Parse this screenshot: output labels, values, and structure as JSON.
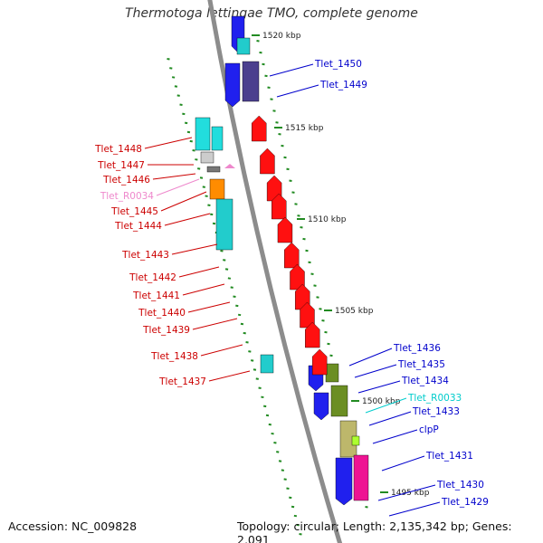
{
  "title": "Thermotoga lettingae TMO, complete genome",
  "footer": {
    "accession": "Accession: NC_009828",
    "topology": "Topology: circular; Length: 2,135,342 bp; Genes: 2,091"
  },
  "colors": {
    "backbone": "#8c8c8c",
    "tick": "#228b22",
    "forward_label": "#0000cc",
    "reverse_label": "#cc0000",
    "rna_forward": "#00cccc",
    "rna_reverse": "#ee88cc"
  },
  "kbp_ticks": [
    "1520 kbp",
    "1515 kbp",
    "1510 kbp",
    "1505 kbp",
    "1500 kbp",
    "1495 kbp"
  ],
  "forward_genes": [
    "Tlet_1450",
    "Tlet_1449",
    "Tlet_1436",
    "Tlet_1435",
    "Tlet_1434",
    "Tlet_R0033",
    "Tlet_1433",
    "clpP",
    "Tlet_1431",
    "Tlet_1430",
    "Tlet_1429"
  ],
  "reverse_genes": [
    "Tlet_1448",
    "Tlet_1447",
    "Tlet_1446",
    "Tlet_R0034",
    "Tlet_1445",
    "Tlet_1444",
    "Tlet_1443",
    "Tlet_1442",
    "Tlet_1441",
    "Tlet_1440",
    "Tlet_1439",
    "Tlet_1438",
    "Tlet_1437"
  ]
}
